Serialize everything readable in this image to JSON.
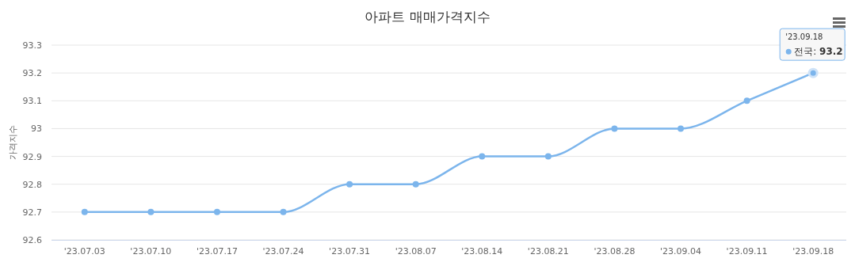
{
  "chart_data": {
    "type": "line",
    "title": "아파트 매매가격지수",
    "ylabel": "가격지수",
    "categories": [
      "'23.07.03",
      "'23.07.10",
      "'23.07.17",
      "'23.07.24",
      "'23.07.31",
      "'23.08.07",
      "'23.08.14",
      "'23.08.21",
      "'23.08.28",
      "'23.09.04",
      "'23.09.11",
      "'23.09.18"
    ],
    "series": [
      {
        "color": "#7cb5ec",
        "values": [
          92.7,
          92.7,
          92.7,
          92.7,
          92.8,
          92.8,
          92.9,
          92.9,
          93,
          93,
          93.1,
          93.2
        ]
      }
    ],
    "annotations": [
      {
        "text": "전국: **93.2**",
        "x": "'23.09.18",
        "y": 93.2
      }
    ],
    "ylim": [
      92.6,
      93.3
    ],
    "yticks": [
      92.6,
      92.7,
      92.8,
      92.9,
      93,
      93.1,
      93.2,
      93.3
    ],
    "grid": "y",
    "marker": "circle",
    "line_style": "solid"
  }
}
